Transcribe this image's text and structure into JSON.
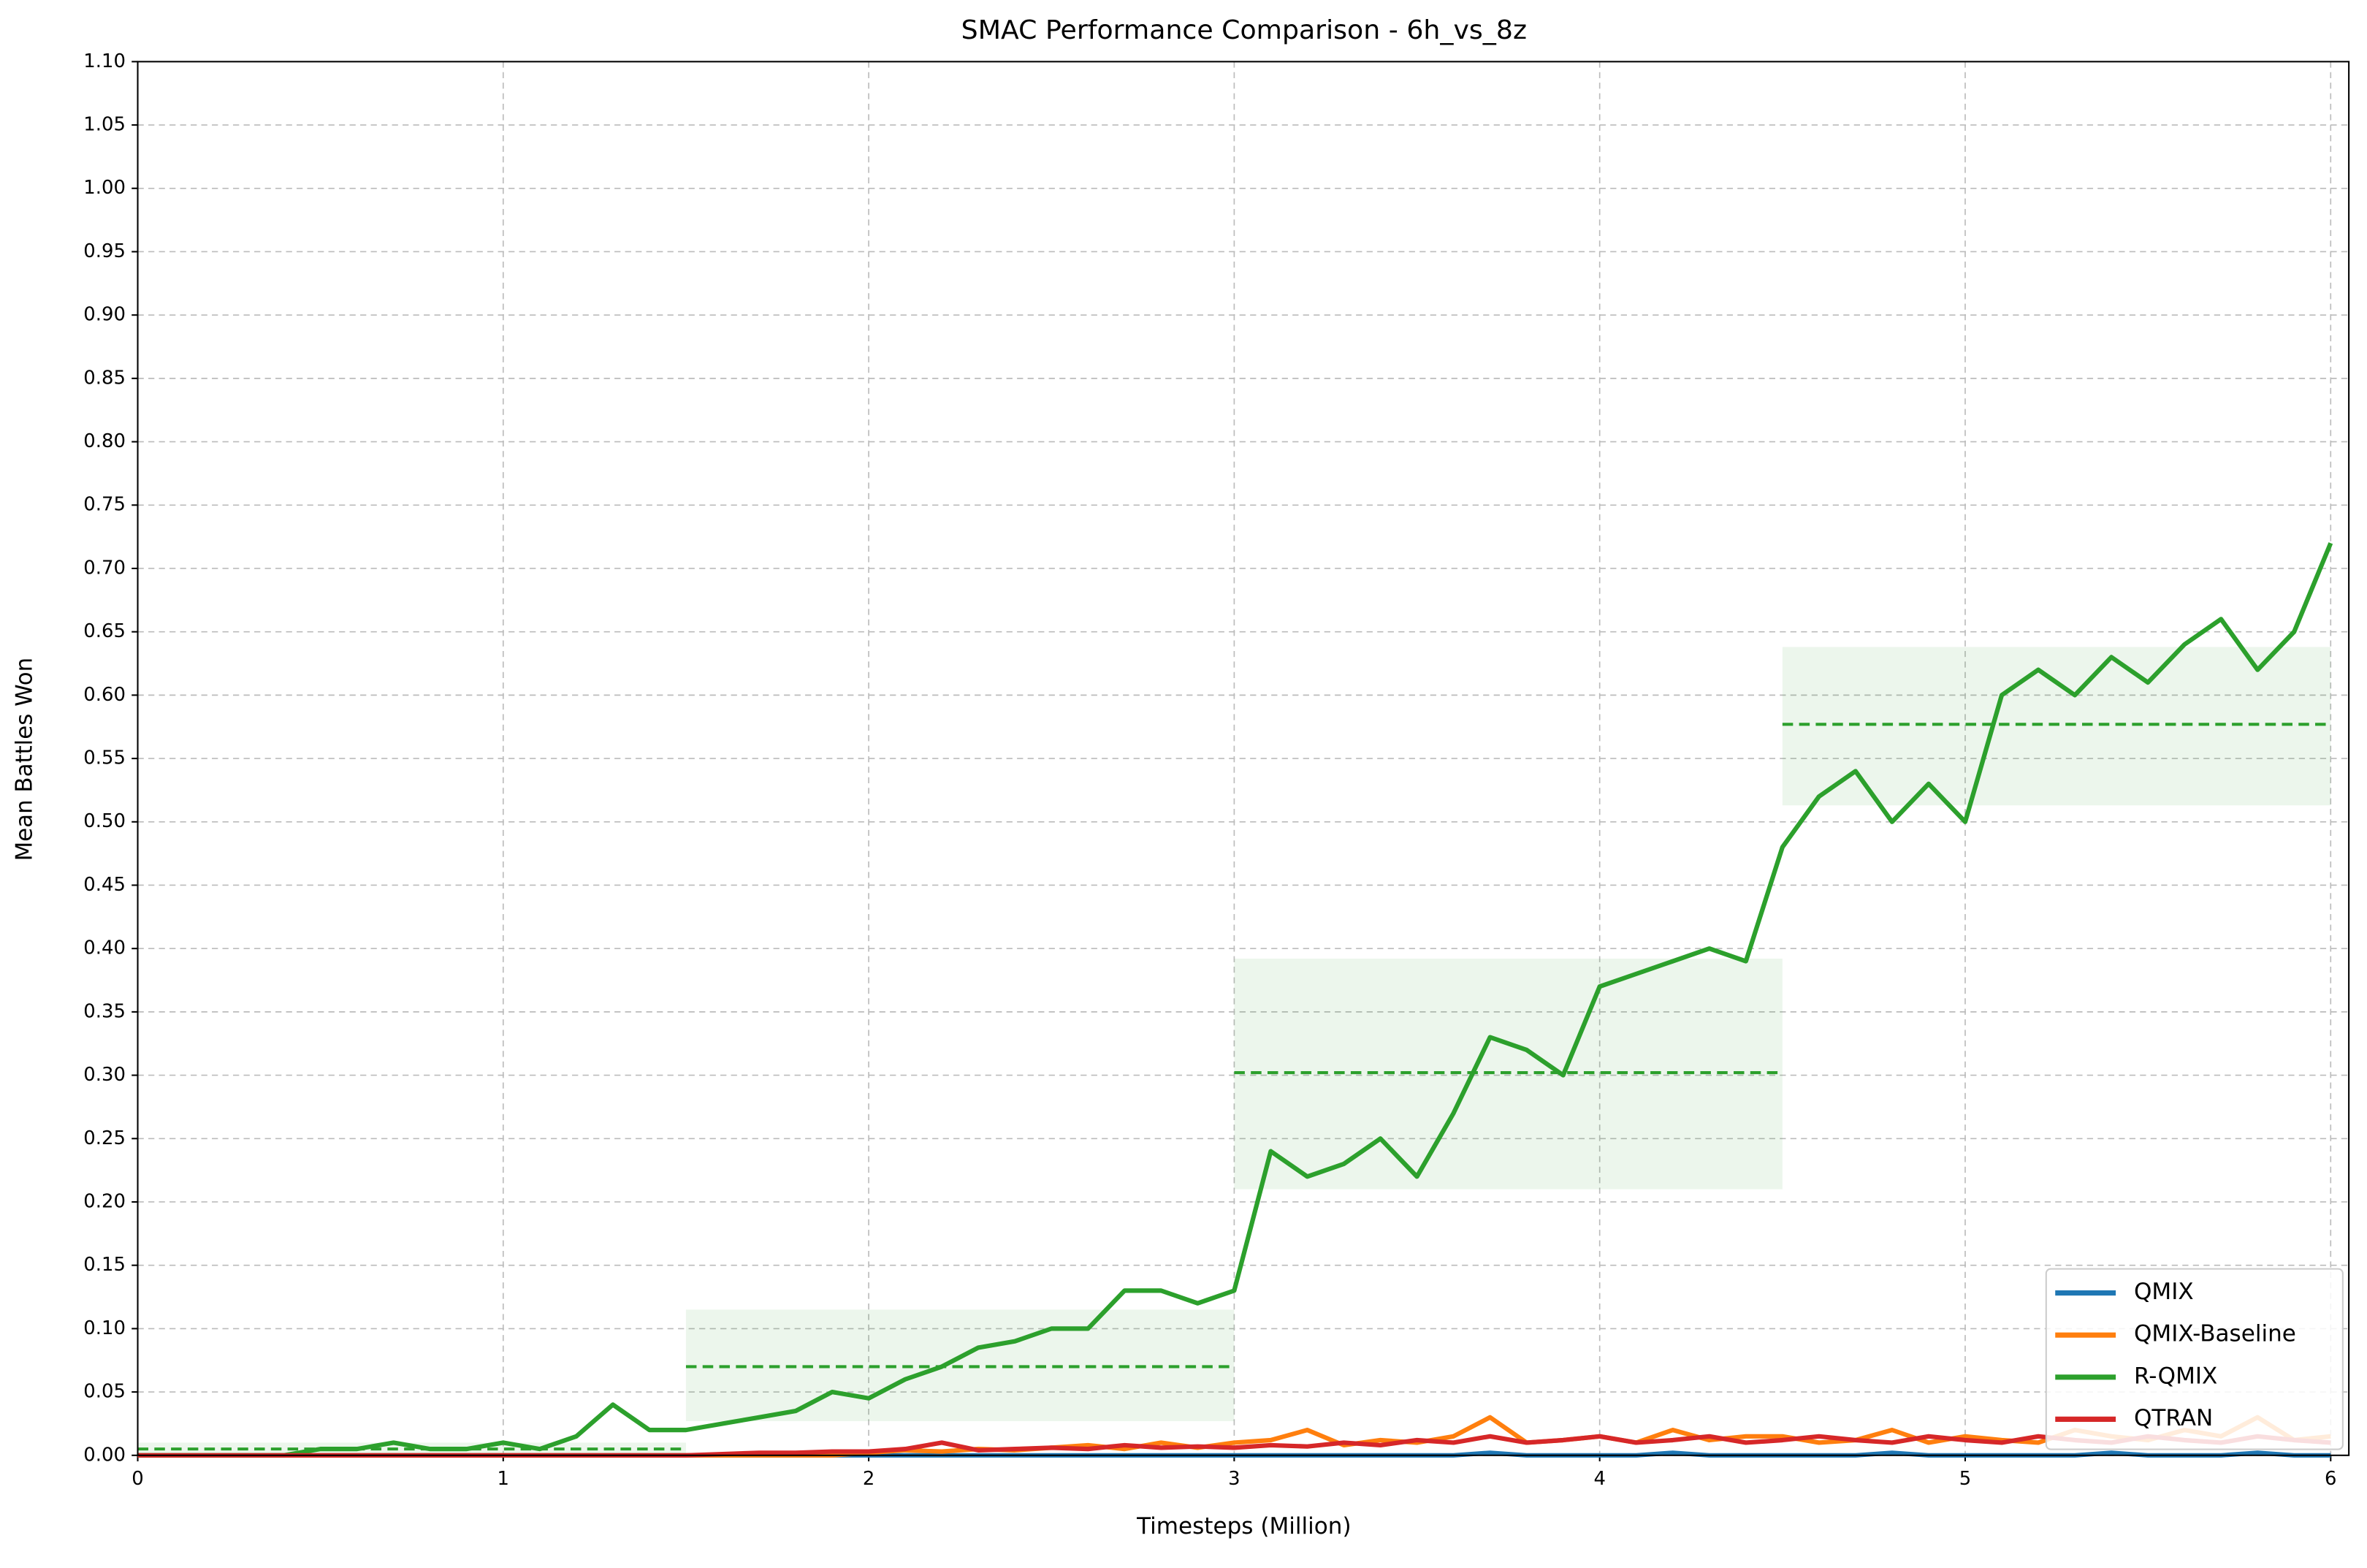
{
  "chart_data": {
    "type": "line",
    "title": "SMAC Performance Comparison - 6h_vs_8z",
    "x_label": "Timesteps (Million)",
    "y_label": "Mean Battles Won",
    "x": [
      0,
      0.1,
      0.2,
      0.3,
      0.4,
      0.5,
      0.6,
      0.7,
      0.8,
      0.9,
      1,
      1.1,
      1.2,
      1.3,
      1.4,
      1.5,
      1.6,
      1.7,
      1.8,
      1.9,
      2,
      2.1,
      2.2,
      2.3,
      2.4,
      2.5,
      2.6,
      2.7,
      2.8,
      2.9,
      3,
      3.1,
      3.2,
      3.3,
      3.4,
      3.5,
      3.6,
      3.7,
      3.8,
      3.9,
      4,
      4.1,
      4.2,
      4.3,
      4.4,
      4.5,
      4.6,
      4.7,
      4.8,
      4.9,
      5,
      5.1,
      5.2,
      5.3,
      5.4,
      5.5,
      5.6,
      5.7,
      5.8,
      5.9,
      6
    ],
    "series": [
      {
        "name": "QMIX",
        "color": "#1f77b4",
        "values": [
          0,
          0,
          0,
          0,
          0,
          0,
          0,
          0,
          0,
          0,
          0,
          0,
          0,
          0,
          0,
          0,
          0,
          0,
          0,
          0,
          0,
          0,
          0,
          0,
          0,
          0,
          0,
          0,
          0,
          0,
          0,
          0,
          0,
          0,
          0,
          0,
          0,
          0.002,
          0,
          0,
          0,
          0,
          0.002,
          0,
          0,
          0,
          0,
          0,
          0.002,
          0,
          0,
          0,
          0,
          0,
          0.002,
          0,
          0,
          0,
          0.002,
          0,
          0
        ]
      },
      {
        "name": "QMIX-Baseline",
        "color": "#ff7f0e",
        "values": [
          0,
          0,
          0,
          0,
          0,
          0,
          0,
          0,
          0,
          0,
          0,
          0,
          0,
          0,
          0,
          0,
          0,
          0,
          0,
          0,
          0.002,
          0.004,
          0.003,
          0.005,
          0.004,
          0.006,
          0.008,
          0.005,
          0.01,
          0.006,
          0.01,
          0.012,
          0.02,
          0.008,
          0.012,
          0.01,
          0.015,
          0.03,
          0.01,
          0.012,
          0.015,
          0.01,
          0.02,
          0.012,
          0.015,
          0.015,
          0.01,
          0.012,
          0.02,
          0.01,
          0.015,
          0.012,
          0.01,
          0.02,
          0.015,
          0.012,
          0.02,
          0.015,
          0.03,
          0.012,
          0.015
        ]
      },
      {
        "name": "R-QMIX",
        "color": "#2ca02c",
        "values": [
          0,
          0,
          0,
          0,
          0,
          0.005,
          0.005,
          0.01,
          0.005,
          0.005,
          0.01,
          0.005,
          0.015,
          0.04,
          0.02,
          0.02,
          0.025,
          0.03,
          0.035,
          0.05,
          0.045,
          0.06,
          0.07,
          0.085,
          0.09,
          0.1,
          0.1,
          0.13,
          0.13,
          0.12,
          0.13,
          0.24,
          0.22,
          0.23,
          0.25,
          0.22,
          0.27,
          0.33,
          0.32,
          0.3,
          0.37,
          0.38,
          0.39,
          0.4,
          0.39,
          0.48,
          0.52,
          0.54,
          0.5,
          0.53,
          0.5,
          0.6,
          0.62,
          0.6,
          0.63,
          0.61,
          0.64,
          0.66,
          0.62,
          0.65,
          0.72
        ]
      },
      {
        "name": "QTRAN",
        "color": "#d62728",
        "values": [
          0,
          0,
          0,
          0,
          0,
          0,
          0,
          0,
          0,
          0,
          0,
          0,
          0,
          0,
          0,
          0,
          0.001,
          0.002,
          0.002,
          0.003,
          0.003,
          0.005,
          0.01,
          0.004,
          0.005,
          0.006,
          0.005,
          0.008,
          0.006,
          0.007,
          0.006,
          0.008,
          0.007,
          0.01,
          0.008,
          0.012,
          0.01,
          0.015,
          0.01,
          0.012,
          0.015,
          0.01,
          0.012,
          0.015,
          0.01,
          0.012,
          0.015,
          0.012,
          0.01,
          0.015,
          0.012,
          0.01,
          0.015,
          0.012,
          0.01,
          0.015,
          0.012,
          0.01,
          0.015,
          0.012,
          0.01
        ]
      }
    ],
    "reference_bands": [
      {
        "x": [
          0,
          1.5
        ],
        "mean": 0.005,
        "low": 0,
        "high": 0.01
      },
      {
        "x": [
          1.5,
          3
        ],
        "mean": 0.07,
        "low": 0.027,
        "high": 0.115
      },
      {
        "x": [
          3,
          4.5
        ],
        "mean": 0.302,
        "low": 0.21,
        "high": 0.392
      },
      {
        "x": [
          4.5,
          6
        ],
        "mean": 0.577,
        "low": 0.513,
        "high": 0.638
      }
    ],
    "band_color": "#2ca02c",
    "xlim": [
      0,
      6.1
    ],
    "ylim": [
      0,
      1.1
    ],
    "xticks": [
      0,
      1,
      2,
      3,
      4,
      5,
      6
    ],
    "yticks": [
      {
        "value": 0,
        "label": "0.00"
      },
      {
        "value": 0.05,
        "label": "0.05"
      },
      {
        "value": 0.1,
        "label": "0.10"
      },
      {
        "value": 0.15,
        "label": "0.15"
      },
      {
        "value": 0.2,
        "label": "0.20"
      },
      {
        "value": 0.25,
        "label": "0.25"
      },
      {
        "value": 0.3,
        "label": "0.30"
      },
      {
        "value": 0.35,
        "label": "0.35"
      },
      {
        "value": 0.4,
        "label": "0.40"
      },
      {
        "value": 0.45,
        "label": "0.45"
      },
      {
        "value": 0.5,
        "label": "0.50"
      },
      {
        "value": 0.55,
        "label": "0.55"
      },
      {
        "value": 0.6,
        "label": "0.60"
      },
      {
        "value": 0.65,
        "label": "0.65"
      },
      {
        "value": 0.7,
        "label": "0.70"
      },
      {
        "value": 0.75,
        "label": "0.75"
      },
      {
        "value": 0.8,
        "label": "0.80"
      },
      {
        "value": 0.85,
        "label": "0.85"
      },
      {
        "value": 0.9,
        "label": "0.90"
      },
      {
        "value": 0.95,
        "label": "0.95"
      },
      {
        "value": 1,
        "label": "1.00"
      },
      {
        "value": 1.05,
        "label": "1.05"
      },
      {
        "value": 1.1,
        "label": "1.10"
      }
    ],
    "grid": true,
    "legend_position": "lower right"
  }
}
